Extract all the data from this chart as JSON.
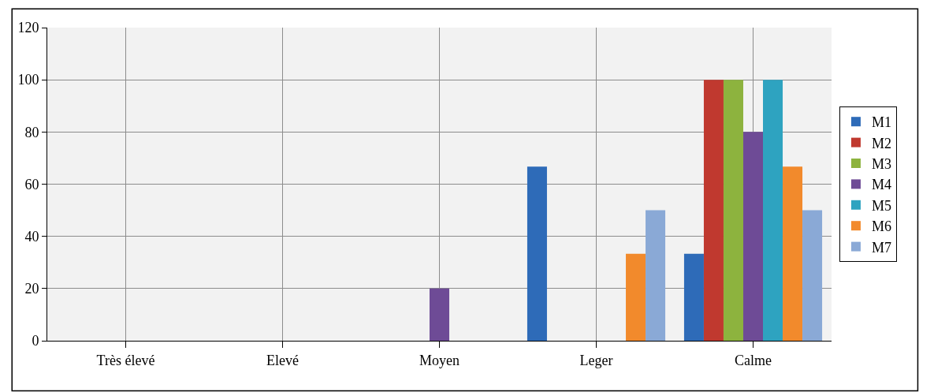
{
  "chart_data": {
    "type": "bar",
    "categories": [
      "Très élevé",
      "Elevé",
      "Moyen",
      "Leger",
      "Calme"
    ],
    "series": [
      {
        "name": "M1",
        "color": "#2e6bb8",
        "values": [
          0,
          0,
          0,
          66.7,
          33.3
        ]
      },
      {
        "name": "M2",
        "color": "#c0392f",
        "values": [
          0,
          0,
          0,
          0,
          100
        ]
      },
      {
        "name": "M3",
        "color": "#8db33e",
        "values": [
          0,
          0,
          0,
          0,
          100
        ]
      },
      {
        "name": "M4",
        "color": "#6e4b96",
        "values": [
          0,
          0,
          20,
          0,
          80
        ]
      },
      {
        "name": "M5",
        "color": "#2ea3c0",
        "values": [
          0,
          0,
          0,
          0,
          100
        ]
      },
      {
        "name": "M6",
        "color": "#f28a2c",
        "values": [
          0,
          0,
          0,
          33.3,
          66.7
        ]
      },
      {
        "name": "M7",
        "color": "#8aa9d6",
        "values": [
          0,
          0,
          0,
          50,
          50
        ]
      }
    ],
    "ylim": [
      0,
      120
    ],
    "yticks": [
      0,
      20,
      40,
      60,
      80,
      100,
      120
    ],
    "grid": true,
    "legend": "right"
  }
}
